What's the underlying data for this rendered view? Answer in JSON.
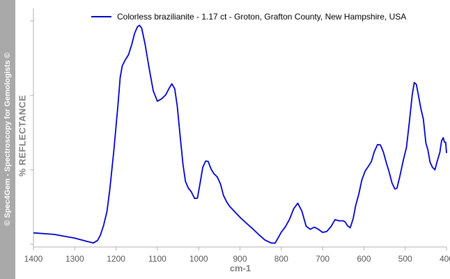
{
  "watermark": "© Spec4Gem - Spectroscopy for Gemologists ©",
  "chart_data": {
    "type": "line",
    "title": "",
    "xlabel": "cm-1",
    "ylabel": "% REFLECTANCE",
    "xlim": [
      1400,
      400
    ],
    "x_reversed": true,
    "ylim": [
      0,
      100
    ],
    "x_ticks": [
      1400,
      1300,
      1200,
      1100,
      1000,
      900,
      800,
      700,
      600,
      500,
      400
    ],
    "y_ticks_labeled": false,
    "grid": false,
    "legend_position": "top-right",
    "colors": {
      "series": "#0000cc",
      "axis": "#b0b0b0"
    },
    "series": [
      {
        "name": "Colorless brazilianite - 1.17 ct - Groton, Grafton County, New Hampshire, USA",
        "x": [
          1400,
          1350,
          1300,
          1270,
          1255,
          1245,
          1238,
          1230,
          1222,
          1215,
          1205,
          1195,
          1190,
          1185,
          1178,
          1170,
          1162,
          1155,
          1148,
          1143,
          1138,
          1130,
          1120,
          1110,
          1100,
          1090,
          1080,
          1072,
          1065,
          1058,
          1052,
          1045,
          1038,
          1032,
          1025,
          1018,
          1010,
          1003,
          997,
          990,
          983,
          977,
          970,
          963,
          955,
          947,
          940,
          932,
          925,
          915,
          900,
          885,
          870,
          855,
          840,
          825,
          815,
          808,
          800,
          790,
          780,
          770,
          760,
          750,
          740,
          730,
          720,
          710,
          700,
          690,
          680,
          670,
          660,
          650,
          645,
          640,
          633,
          626,
          620,
          612,
          605,
          597,
          590,
          582,
          575,
          567,
          560,
          553,
          546,
          539,
          532,
          525,
          520,
          513,
          505,
          497,
          490,
          483,
          478,
          473,
          468,
          462,
          456,
          450,
          445,
          440,
          434,
          428,
          422,
          416,
          412,
          408,
          405,
          402,
          400
        ],
        "y": [
          5.5,
          4.8,
          3.1,
          1.6,
          0.9,
          2,
          4.4,
          9,
          15.3,
          25.5,
          43.6,
          64.8,
          76.3,
          81.7,
          84.3,
          86.7,
          91.4,
          96.6,
          99.6,
          100.2,
          98.9,
          91.9,
          80.8,
          70.3,
          65.6,
          66.6,
          68.4,
          71.3,
          73.5,
          71.3,
          63.5,
          50,
          36.7,
          29,
          25.9,
          24.3,
          21.2,
          21.3,
          27.7,
          35.4,
          38.3,
          38.1,
          34.6,
          32.5,
          31,
          27.7,
          22.6,
          19.6,
          17.6,
          15.6,
          12.6,
          10,
          7.5,
          4.8,
          2.3,
          0.9,
          0.8,
          3.1,
          5.8,
          8.3,
          11.7,
          16.5,
          19,
          15.4,
          8.6,
          7.1,
          8.1,
          7.1,
          5.7,
          6.1,
          8.3,
          11.5,
          11,
          11,
          10.4,
          8.8,
          7.8,
          12,
          17.8,
          23.5,
          29.6,
          33.7,
          35.6,
          38,
          42.4,
          45.8,
          45.6,
          42.4,
          37.7,
          33.3,
          28.3,
          25.5,
          25.8,
          31.3,
          38.3,
          44.5,
          55.9,
          68.5,
          74.1,
          73.2,
          68.2,
          62.2,
          57.3,
          46.4,
          43.3,
          37.8,
          35.4,
          34.3,
          38.6,
          42.3,
          47.5,
          48.9,
          46.9,
          46.8,
          41.9
        ]
      }
    ]
  }
}
